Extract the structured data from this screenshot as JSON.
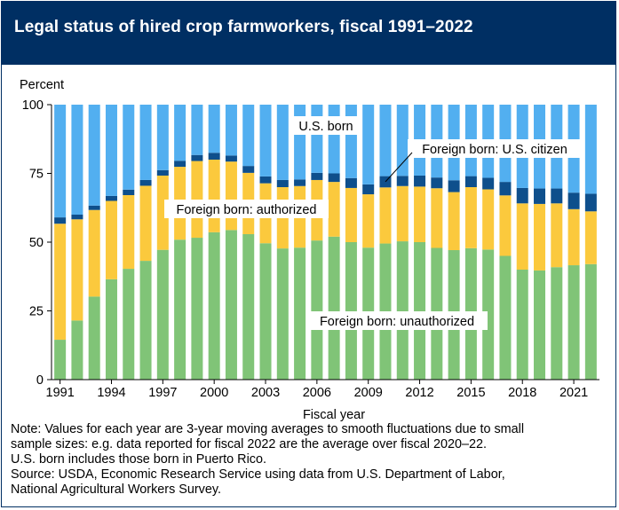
{
  "header": {
    "title": "Legal status of hired crop farmworkers, fiscal 1991–2022"
  },
  "notes": [
    "Note: Values for each year are 3-year moving averages to smooth fluctuations due to small",
    "sample sizes: e.g. data reported for fiscal 2022 are the average over fiscal 2020–22.",
    "U.S. born includes those born in Puerto Rico.",
    "Source: USDA, Economic Research Service using data from U.S. Department of Labor,",
    "National Agricultural Workers Survey."
  ],
  "chart_data": {
    "type": "bar",
    "stacked": true,
    "title": "Legal status of hired crop farmworkers, fiscal 1991–2022",
    "ylabel": "Percent",
    "xlabel": "Fiscal year",
    "ylim": [
      0,
      100
    ],
    "yticks": [
      0,
      25,
      50,
      75,
      100
    ],
    "xtick_labels": [
      "1991",
      "1994",
      "1997",
      "2000",
      "2003",
      "2006",
      "2009",
      "2012",
      "2015",
      "2018",
      "2021"
    ],
    "grid": false,
    "categories": [
      "1991",
      "1992",
      "1993",
      "1994",
      "1995",
      "1996",
      "1997",
      "1998",
      "1999",
      "2000",
      "2001",
      "2002",
      "2003",
      "2004",
      "2005",
      "2006",
      "2007",
      "2008",
      "2009",
      "2010",
      "2011",
      "2012",
      "2013",
      "2014",
      "2015",
      "2016",
      "2017",
      "2018",
      "2019",
      "2020",
      "2021",
      "2022"
    ],
    "series": [
      {
        "name": "Foreign born: unauthorized",
        "color": "#80c477",
        "values": [
          14.5,
          21.5,
          30.2,
          36.5,
          40.3,
          43.2,
          47.2,
          50.9,
          51.6,
          53.6,
          54.4,
          52.9,
          49.6,
          47.7,
          48.0,
          50.6,
          52.0,
          50.0,
          48.0,
          49.5,
          50.3,
          50.0,
          47.9,
          47.1,
          47.8,
          47.3,
          45.0,
          40.0,
          39.7,
          40.9,
          41.6,
          42.0
        ]
      },
      {
        "name": "Foreign born: authorized",
        "color": "#fbc93d",
        "values": [
          42.2,
          36.8,
          31.5,
          28.5,
          26.8,
          27.3,
          27.0,
          26.5,
          27.9,
          26.4,
          24.9,
          22.3,
          21.8,
          22.3,
          22.4,
          22.0,
          19.9,
          19.7,
          19.4,
          20.4,
          20.1,
          20.2,
          21.7,
          21.1,
          22.2,
          21.9,
          22.0,
          24.1,
          24.2,
          23.2,
          20.4,
          19.2
        ]
      },
      {
        "name": "Foreign born: U.S. citizen",
        "color": "#0e4f8c",
        "values": [
          2.3,
          1.7,
          1.6,
          1.8,
          2.0,
          2.1,
          2.0,
          2.2,
          2.2,
          2.5,
          2.2,
          2.5,
          2.5,
          2.6,
          2.4,
          2.6,
          3.1,
          3.6,
          3.6,
          4.1,
          3.7,
          4.0,
          3.9,
          4.3,
          4.0,
          4.2,
          4.9,
          5.6,
          5.6,
          5.4,
          6.0,
          6.4
        ]
      },
      {
        "name": "U.S. born",
        "color": "#52aff0",
        "values": [
          41.0,
          40.0,
          36.7,
          33.2,
          30.9,
          27.4,
          23.8,
          20.4,
          18.3,
          17.5,
          18.5,
          22.3,
          26.1,
          27.4,
          27.2,
          24.8,
          25.0,
          26.7,
          29.0,
          26.0,
          25.9,
          25.8,
          26.5,
          27.5,
          26.0,
          26.6,
          28.1,
          30.3,
          30.5,
          30.5,
          32.0,
          32.4
        ]
      }
    ],
    "annotations": [
      {
        "text": "U.S. born",
        "series": "U.S. born"
      },
      {
        "text": "Foreign born: U.S. citizen",
        "series": "Foreign born: U.S. citizen",
        "year": "2010"
      },
      {
        "text": "Foreign born: authorized",
        "series": "Foreign born: authorized"
      },
      {
        "text": "Foreign born: unauthorized",
        "series": "Foreign born: unauthorized"
      }
    ]
  }
}
